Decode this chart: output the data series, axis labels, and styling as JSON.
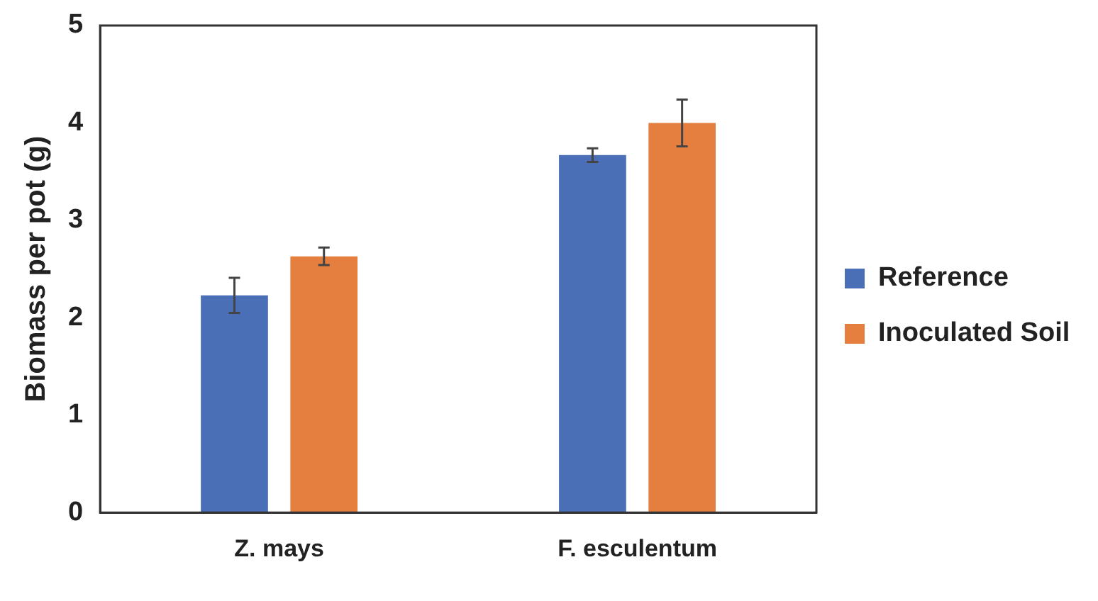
{
  "chart_data": {
    "type": "bar",
    "ylabel": "Biomass per pot (g)",
    "categories": [
      "Z. mays",
      "F. esculentum"
    ],
    "series": [
      {
        "name": "Reference",
        "color": "#4a6fb6",
        "values": [
          2.23,
          3.67
        ],
        "errors": [
          0.18,
          0.07
        ]
      },
      {
        "name": "Inoculated Soil",
        "color": "#e47f3f",
        "values": [
          2.63,
          4.0
        ],
        "errors": [
          0.09,
          0.24
        ]
      }
    ],
    "ylim": [
      0,
      5
    ],
    "yticks": [
      0,
      1,
      2,
      3,
      4,
      5
    ],
    "grid": false,
    "legend": "right"
  }
}
